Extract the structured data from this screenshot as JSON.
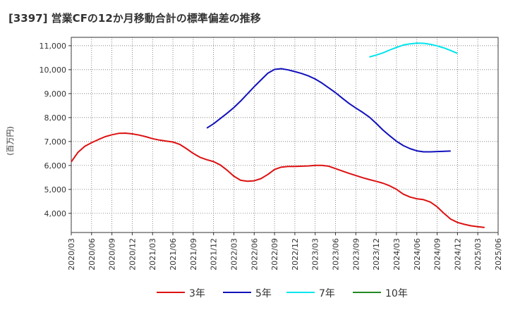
{
  "title": "[3397]  営業CFの12か月移動合計の標準偏差の推移",
  "chart_data": {
    "type": "line",
    "ylabel": "(百万円)",
    "ylim": [
      3200,
      11350
    ],
    "yticks": [
      4000,
      5000,
      6000,
      7000,
      8000,
      9000,
      10000,
      11000
    ],
    "ytick_labels": [
      "4,000",
      "5,000",
      "6,000",
      "7,000",
      "8,000",
      "9,000",
      "10,000",
      "11,000"
    ],
    "x_categories": [
      "2020/03",
      "2020/06",
      "2020/09",
      "2020/12",
      "2021/03",
      "2021/06",
      "2021/09",
      "2021/12",
      "2022/03",
      "2022/06",
      "2022/09",
      "2022/12",
      "2023/03",
      "2023/06",
      "2023/09",
      "2023/12",
      "2024/03",
      "2024/06",
      "2024/09",
      "2024/12",
      "2025/03",
      "2025/06"
    ],
    "grid": true,
    "legend_position": "bottom",
    "series": [
      {
        "name": "3年",
        "color": "#dd1111",
        "start_index": 0,
        "values": [
          6150,
          6550,
          6800,
          6950,
          7080,
          7200,
          7280,
          7340,
          7350,
          7320,
          7270,
          7200,
          7120,
          7060,
          7020,
          6980,
          6880,
          6700,
          6500,
          6340,
          6240,
          6160,
          6020,
          5800,
          5550,
          5380,
          5340,
          5360,
          5450,
          5620,
          5830,
          5930,
          5960,
          5960,
          5970,
          5980,
          6000,
          6000,
          5970,
          5870,
          5770,
          5670,
          5580,
          5490,
          5410,
          5340,
          5260,
          5150,
          5000,
          4800,
          4680,
          4610,
          4570,
          4470,
          4270,
          4000,
          3760,
          3620,
          3540,
          3480,
          3440,
          3410
        ]
      },
      {
        "name": "5年",
        "color": "#1111bb",
        "start_index": 20,
        "values": [
          7560,
          7740,
          7960,
          8180,
          8420,
          8690,
          8990,
          9290,
          9570,
          9850,
          10010,
          10040,
          9990,
          9920,
          9840,
          9740,
          9610,
          9440,
          9240,
          9040,
          8810,
          8590,
          8400,
          8220,
          8020,
          7760,
          7480,
          7240,
          7010,
          6830,
          6700,
          6610,
          6570,
          6570,
          6580,
          6590,
          6600
        ]
      },
      {
        "name": "7年",
        "color": "#00e5ee",
        "start_index": 44,
        "values": [
          10530,
          10610,
          10700,
          10820,
          10930,
          11030,
          11080,
          11110,
          11100,
          11060,
          10990,
          10910,
          10800,
          10680
        ]
      },
      {
        "name": "10年",
        "color": "#228822",
        "start_index": 0,
        "values": []
      }
    ]
  }
}
